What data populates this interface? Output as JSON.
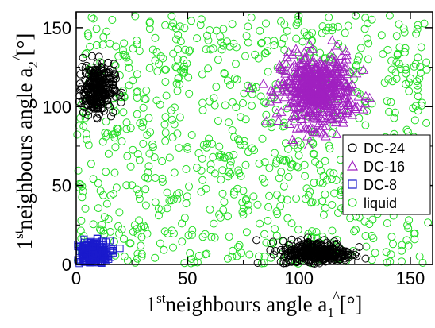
{
  "chart_data": {
    "type": "scatter",
    "xlabel": {
      "pre": "1",
      "sup": "st",
      "mid": "neighbours angle ",
      "hat": "^",
      "base": "a",
      "sub": "1",
      "post": " [°]"
    },
    "ylabel": {
      "pre": "1",
      "sup": "st",
      "mid": "neighbours angle ",
      "hat": "^",
      "base": "a",
      "sub": "2",
      "post": " [°]"
    },
    "xlim": [
      0,
      160
    ],
    "ylim": [
      0,
      160
    ],
    "x_ticks": [
      0,
      50,
      100,
      150
    ],
    "y_ticks": [
      0,
      50,
      100,
      150
    ],
    "x_tick_labels": [
      "0",
      "50",
      "100",
      "150"
    ],
    "y_tick_labels": [
      "0",
      "50",
      "100",
      "150"
    ],
    "grid": false,
    "legend_position": "right",
    "series": [
      {
        "name": "DC-24",
        "marker": "circle",
        "color": "#000000",
        "clusters": [
          {
            "center": [
              9,
              111
            ],
            "spread": [
              4,
              8
            ],
            "n": 260
          },
          {
            "center": [
              108,
              7
            ],
            "spread": [
              8,
              4
            ],
            "n": 330
          }
        ]
      },
      {
        "name": "DC-16",
        "marker": "triangle",
        "color": "#a020c0",
        "clusters": [
          {
            "center": [
              108,
              110
            ],
            "spread": [
              8,
              11
            ],
            "n": 560
          }
        ]
      },
      {
        "name": "DC-8",
        "marker": "square",
        "color": "#1a1acc",
        "clusters": [
          {
            "center": [
              7,
              7
            ],
            "spread": [
              4,
              4
            ],
            "n": 320
          }
        ]
      },
      {
        "name": "liquid",
        "marker": "circle",
        "color": "#22dd22",
        "clusters": [
          {
            "uniform": [
              [
                0,
                158
              ],
              [
                0,
                158
              ]
            ],
            "n": 900
          }
        ]
      }
    ]
  }
}
